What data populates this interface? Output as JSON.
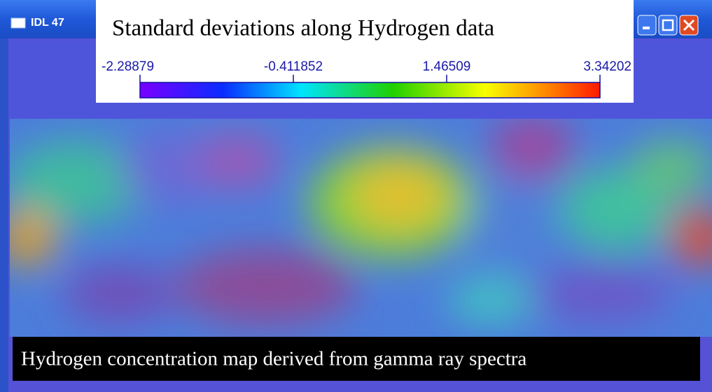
{
  "window": {
    "title": "IDL 47"
  },
  "colorbar": {
    "title": "Standard deviations along Hydrogen data",
    "ticks": [
      -2.28879,
      -0.411852,
      1.46509,
      3.34202
    ]
  },
  "caption": "Hydrogen concentration map derived from gamma ray spectra"
}
